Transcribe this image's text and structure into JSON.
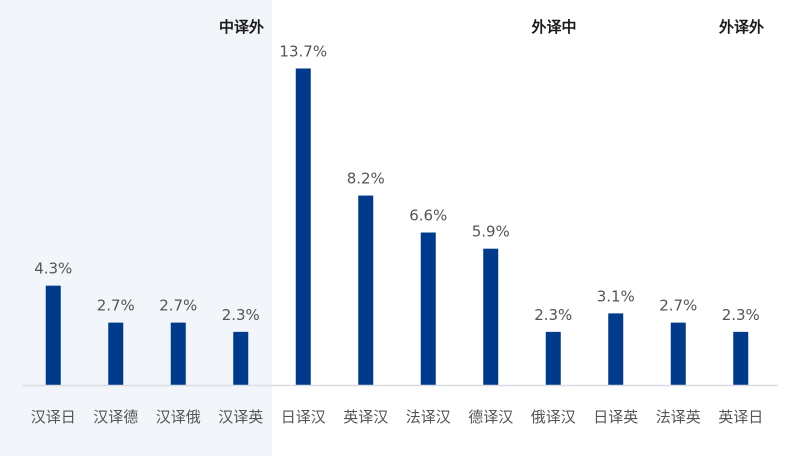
{
  "chart_data": {
    "type": "bar",
    "title": "",
    "xlabel": "",
    "ylabel": "",
    "ylim": [
      0,
      14.5
    ],
    "grid": false,
    "value_suffix": "%",
    "categories": [
      "汉译日",
      "汉译德",
      "汉译俄",
      "汉译英",
      "日译汉",
      "英译汉",
      "法译汉",
      "德译汉",
      "俄译汉",
      "日译英",
      "法译英",
      "英译日"
    ],
    "values": [
      4.3,
      2.7,
      2.7,
      2.3,
      13.7,
      8.2,
      6.6,
      5.9,
      2.3,
      3.1,
      2.7,
      2.3
    ],
    "value_labels": [
      "4.3%",
      "2.7%",
      "2.7%",
      "2.3%",
      "13.7%",
      "8.2%",
      "6.6%",
      "5.9%",
      "2.3%",
      "3.1%",
      "2.7%",
      "2.3%"
    ],
    "groups": [
      {
        "label": "中译外",
        "start": 0,
        "end": 3
      },
      {
        "label": "外译中",
        "start": 4,
        "end": 8
      },
      {
        "label": "外译外",
        "start": 9,
        "end": 11
      }
    ],
    "colors": {
      "bar": "#003a8c",
      "highlight_band": "#f2f5fa",
      "baseline": "#d9dde3"
    }
  }
}
